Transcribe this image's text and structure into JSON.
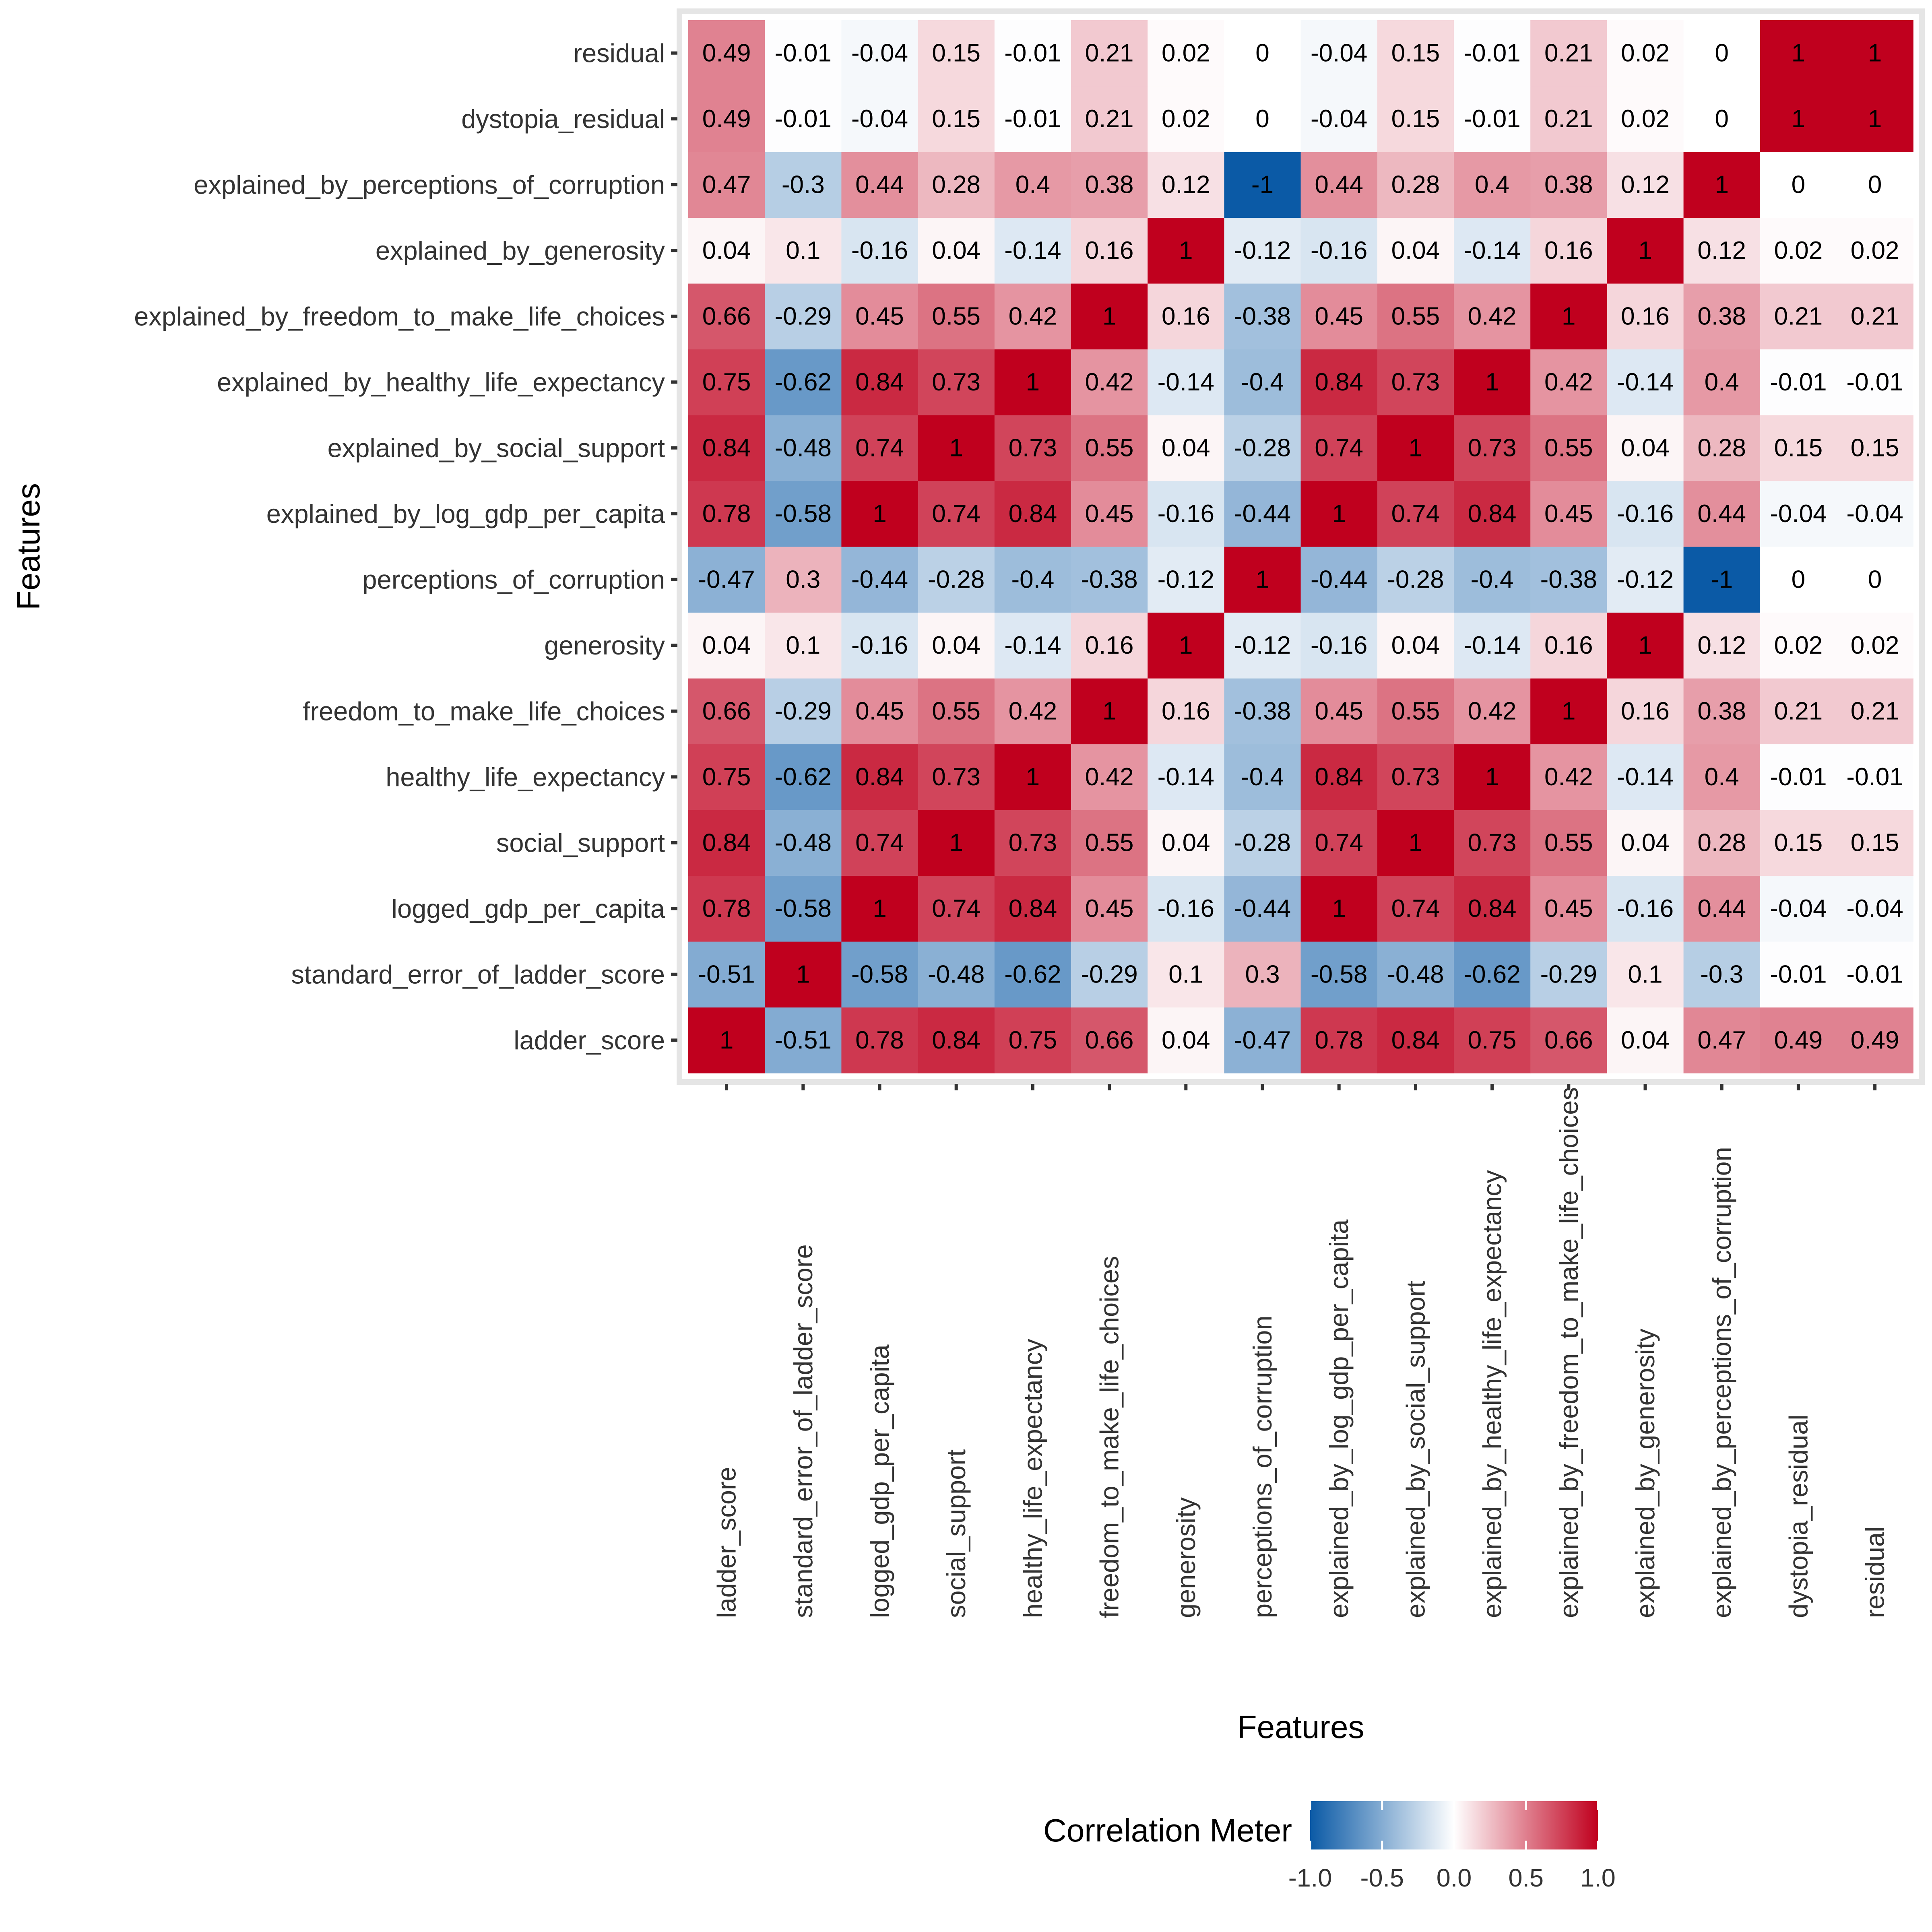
{
  "chart_data": {
    "type": "heatmap",
    "xlabel": "Features",
    "ylabel": "Features",
    "features": [
      "ladder_score",
      "standard_error_of_ladder_score",
      "logged_gdp_per_capita",
      "social_support",
      "healthy_life_expectancy",
      "freedom_to_make_life_choices",
      "generosity",
      "perceptions_of_corruption",
      "explained_by_log_gdp_per_capita",
      "explained_by_social_support",
      "explained_by_healthy_life_expectancy",
      "explained_by_freedom_to_make_life_choices",
      "explained_by_generosity",
      "explained_by_perceptions_of_corruption",
      "dystopia_residual",
      "residual"
    ],
    "matrix": [
      [
        1,
        -0.51,
        0.78,
        0.84,
        0.75,
        0.66,
        0.04,
        -0.47,
        0.78,
        0.84,
        0.75,
        0.66,
        0.04,
        0.47,
        0.49,
        0.49
      ],
      [
        -0.51,
        1,
        -0.58,
        -0.48,
        -0.62,
        -0.29,
        0.1,
        0.3,
        -0.58,
        -0.48,
        -0.62,
        -0.29,
        0.1,
        -0.3,
        -0.01,
        -0.01
      ],
      [
        0.78,
        -0.58,
        1,
        0.74,
        0.84,
        0.45,
        -0.16,
        -0.44,
        1,
        0.74,
        0.84,
        0.45,
        -0.16,
        0.44,
        -0.04,
        -0.04
      ],
      [
        0.84,
        -0.48,
        0.74,
        1,
        0.73,
        0.55,
        0.04,
        -0.28,
        0.74,
        1,
        0.73,
        0.55,
        0.04,
        0.28,
        0.15,
        0.15
      ],
      [
        0.75,
        -0.62,
        0.84,
        0.73,
        1,
        0.42,
        -0.14,
        -0.4,
        0.84,
        0.73,
        1,
        0.42,
        -0.14,
        0.4,
        -0.01,
        -0.01
      ],
      [
        0.66,
        -0.29,
        0.45,
        0.55,
        0.42,
        1,
        0.16,
        -0.38,
        0.45,
        0.55,
        0.42,
        1,
        0.16,
        0.38,
        0.21,
        0.21
      ],
      [
        0.04,
        0.1,
        -0.16,
        0.04,
        -0.14,
        0.16,
        1,
        -0.12,
        -0.16,
        0.04,
        -0.14,
        0.16,
        1,
        0.12,
        0.02,
        0.02
      ],
      [
        -0.47,
        0.3,
        -0.44,
        -0.28,
        -0.4,
        -0.38,
        -0.12,
        1,
        -0.44,
        -0.28,
        -0.4,
        -0.38,
        -0.12,
        -1,
        0,
        0
      ],
      [
        0.78,
        -0.58,
        1,
        0.74,
        0.84,
        0.45,
        -0.16,
        -0.44,
        1,
        0.74,
        0.84,
        0.45,
        -0.16,
        0.44,
        -0.04,
        -0.04
      ],
      [
        0.84,
        -0.48,
        0.74,
        1,
        0.73,
        0.55,
        0.04,
        -0.28,
        0.74,
        1,
        0.73,
        0.55,
        0.04,
        0.28,
        0.15,
        0.15
      ],
      [
        0.75,
        -0.62,
        0.84,
        0.73,
        1,
        0.42,
        -0.14,
        -0.4,
        0.84,
        0.73,
        1,
        0.42,
        -0.14,
        0.4,
        -0.01,
        -0.01
      ],
      [
        0.66,
        -0.29,
        0.45,
        0.55,
        0.42,
        1,
        0.16,
        -0.38,
        0.45,
        0.55,
        0.42,
        1,
        0.16,
        0.38,
        0.21,
        0.21
      ],
      [
        0.04,
        0.1,
        -0.16,
        0.04,
        -0.14,
        0.16,
        1,
        -0.12,
        -0.16,
        0.04,
        -0.14,
        0.16,
        1,
        0.12,
        0.02,
        0.02
      ],
      [
        0.47,
        -0.3,
        0.44,
        0.28,
        0.4,
        0.38,
        0.12,
        -1,
        0.44,
        0.28,
        0.4,
        0.38,
        0.12,
        1,
        0,
        0
      ],
      [
        0.49,
        -0.01,
        -0.04,
        0.15,
        -0.01,
        0.21,
        0.02,
        0,
        -0.04,
        0.15,
        -0.01,
        0.21,
        0.02,
        0,
        1,
        1
      ],
      [
        0.49,
        -0.01,
        -0.04,
        0.15,
        -0.01,
        0.21,
        0.02,
        0,
        -0.04,
        0.15,
        -0.01,
        0.21,
        0.02,
        0,
        1,
        1
      ]
    ],
    "value_range": [
      -1,
      1
    ],
    "grid": false,
    "legend": {
      "title": "Correlation Meter",
      "position": "bottom",
      "ticks": [
        "-1.0",
        "-0.5",
        "0.0",
        "0.5",
        "1.0"
      ],
      "low_color": "#0B5AA6",
      "mid_color": "#FFFFFF",
      "high_color": "#C0001E"
    },
    "panel_border_color": "#E5E5E5"
  }
}
